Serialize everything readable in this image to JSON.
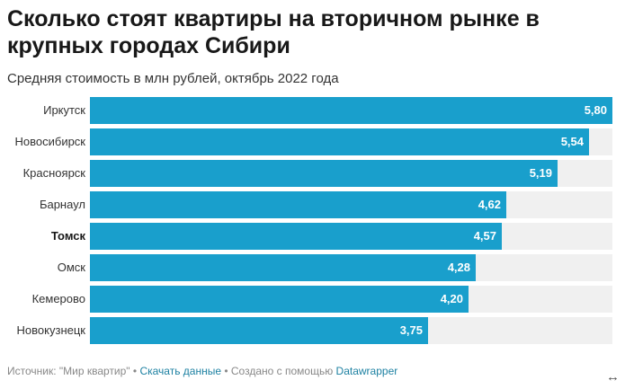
{
  "colors": {
    "bar": "#199fcc",
    "track": "#f0f0f0",
    "link": "#1d81a2"
  },
  "footer": {
    "source": "Источник: \"Мир квартир\"",
    "sep1": " • ",
    "download": "Скачать данные",
    "sep2": " • ",
    "created": "Создано с помощью ",
    "tool": "Datawrapper"
  },
  "expand_icon": "↔",
  "chart_data": {
    "type": "bar",
    "orientation": "horizontal",
    "title": "Сколько стоят квартиры на вторичном рынке в крупных городах Сибири",
    "subtitle": "Средняя стоимость в млн рублей, октябрь 2022 года",
    "categories": [
      "Иркутск",
      "Новосибирск",
      "Красноярск",
      "Барнаул",
      "Томск",
      "Омск",
      "Кемерово",
      "Новокузнецк"
    ],
    "values": [
      5.8,
      5.54,
      5.19,
      4.62,
      4.57,
      4.28,
      4.2,
      3.75
    ],
    "value_labels": [
      "5,80",
      "5,54",
      "5,19",
      "4,62",
      "4,57",
      "4,28",
      "4,20",
      "3,75"
    ],
    "highlighted": "Томск",
    "xlim": [
      0,
      5.8
    ]
  }
}
